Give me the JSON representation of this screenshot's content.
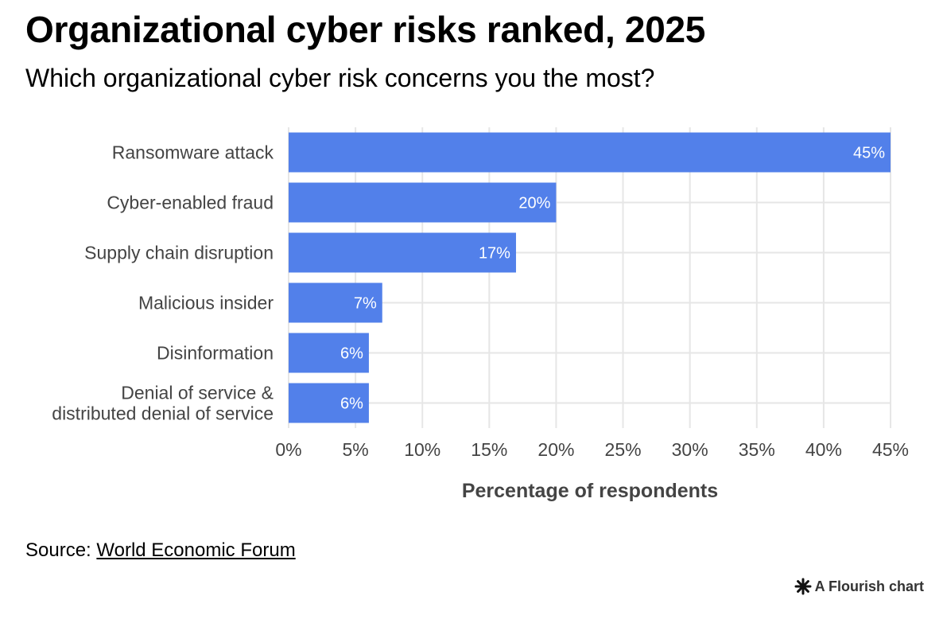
{
  "chart_data": {
    "type": "bar",
    "orientation": "horizontal",
    "title": "Organizational cyber risks ranked, 2025",
    "subtitle": "Which organizational cyber risk concerns you the most?",
    "categories": [
      [
        "Ransomware attack"
      ],
      [
        "Cyber-enabled fraud"
      ],
      [
        "Supply chain disruption"
      ],
      [
        "Malicious insider"
      ],
      [
        "Disinformation"
      ],
      [
        "Denial of service &",
        "distributed denial of service"
      ]
    ],
    "values": [
      45,
      20,
      17,
      7,
      6,
      6
    ],
    "data_labels": [
      "45%",
      "20%",
      "17%",
      "7%",
      "6%",
      "6%"
    ],
    "xlabel": "Percentage of respondents",
    "ylabel": "",
    "xlim": [
      0,
      45
    ],
    "xticks": [
      0,
      5,
      10,
      15,
      20,
      25,
      30,
      35,
      40,
      45
    ],
    "xtick_labels": [
      "0%",
      "5%",
      "10%",
      "15%",
      "20%",
      "25%",
      "30%",
      "35%",
      "40%",
      "45%"
    ],
    "grid": true,
    "bar_color": "#5280ea",
    "grid_color": "#e6e6e6"
  },
  "footer": {
    "source_prefix": "Source: ",
    "source_link": "World Economic Forum",
    "credit": "A Flourish chart"
  }
}
